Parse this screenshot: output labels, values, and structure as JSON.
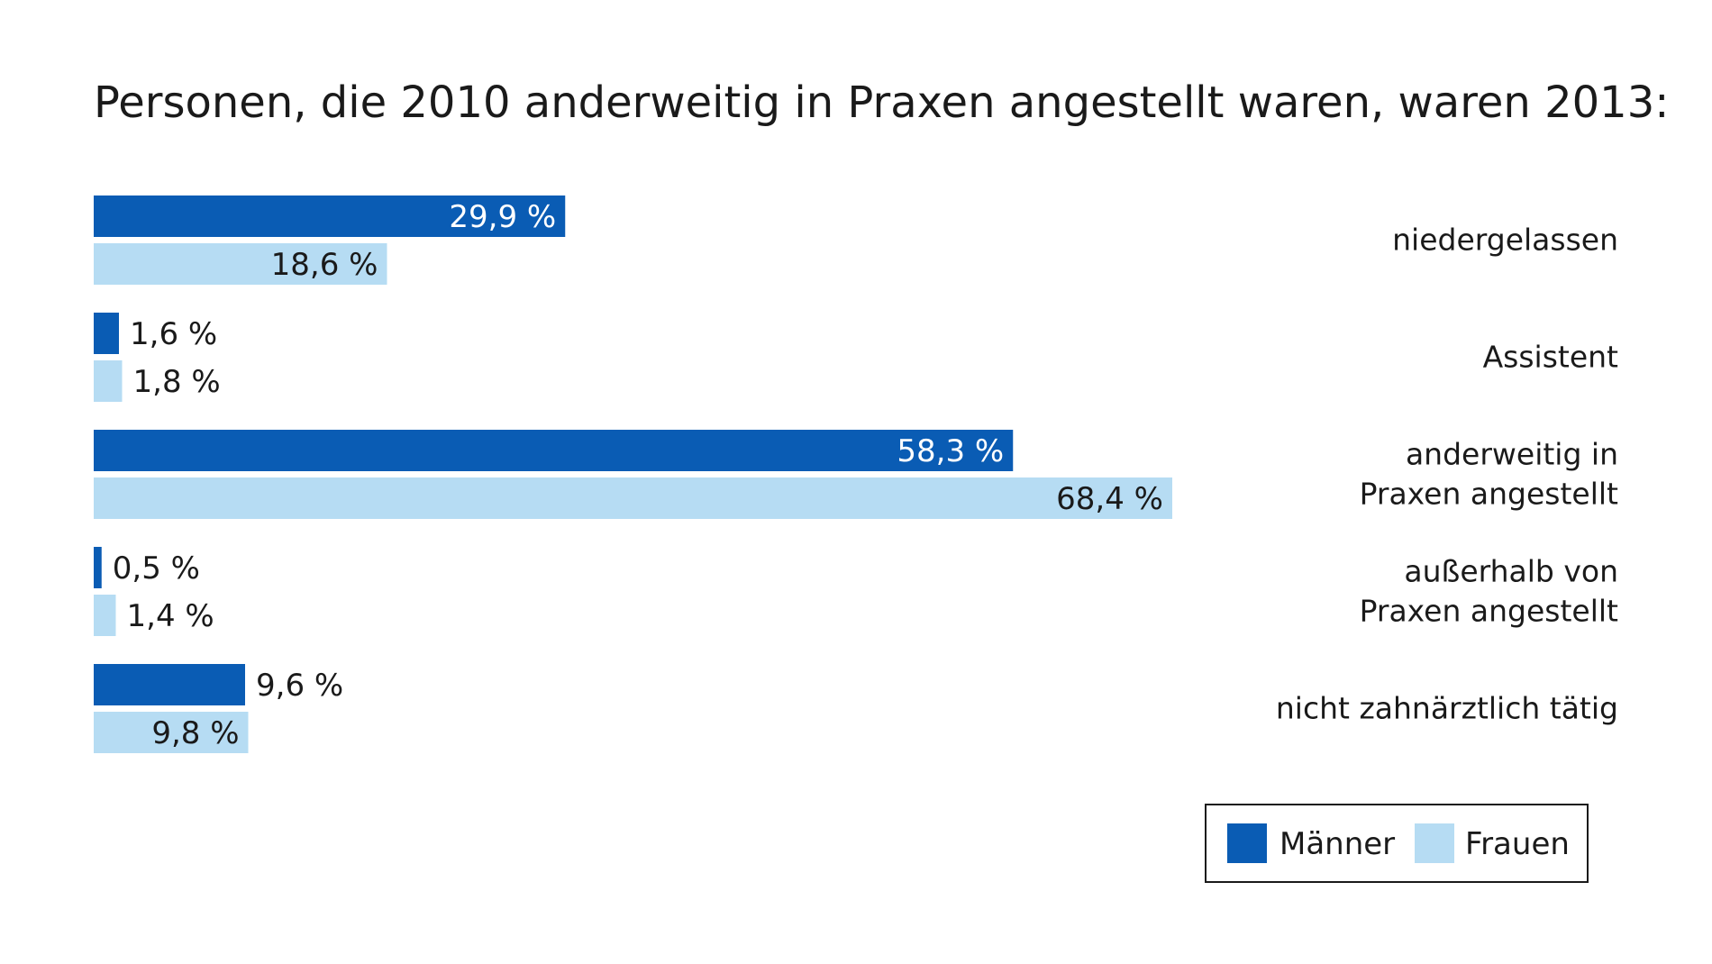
{
  "chart_data": {
    "type": "bar",
    "orientation": "horizontal",
    "title": "Personen, die 2010 anderweitig in Praxen angestellt waren, waren 2013:",
    "categories": [
      [
        "niedergelassen"
      ],
      [
        "Assistent"
      ],
      [
        "anderweitig in",
        "Praxen angestellt"
      ],
      [
        "außerhalb von",
        "Praxen angestellt"
      ],
      [
        "nicht zahnärztlich tätig"
      ]
    ],
    "series": [
      {
        "name": "Männer",
        "color": "#0a5cb4",
        "values": [
          29.9,
          1.6,
          58.3,
          0.5,
          9.6
        ],
        "labels": [
          "29,9 %",
          "1,6 %",
          "58,3 %",
          "0,5 %",
          "9,6 %"
        ]
      },
      {
        "name": "Frauen",
        "color": "#b6dcf3",
        "values": [
          18.6,
          1.8,
          68.4,
          1.4,
          9.8
        ],
        "labels": [
          "18,6 %",
          "1,8 %",
          "68,4 %",
          "1,4 %",
          "9,8 %"
        ]
      }
    ],
    "unit": "%",
    "xlim": [
      0,
      100
    ],
    "grid": false,
    "legend": "bottom-right"
  }
}
